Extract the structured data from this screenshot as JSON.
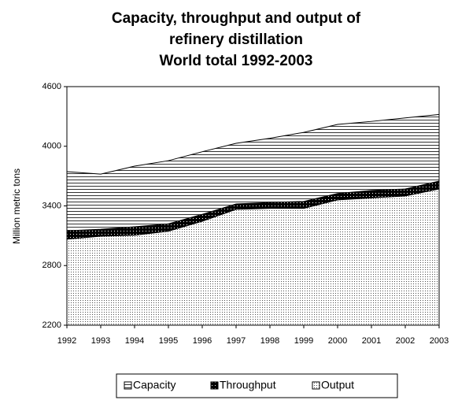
{
  "chart_data": {
    "type": "area",
    "title": [
      "Capacity, throughput and output of",
      "refinery distillation",
      "World total 1992-2003"
    ],
    "y_label": "Million metric tons",
    "categories": [
      "1992",
      "1993",
      "1994",
      "1995",
      "1996",
      "1997",
      "1998",
      "1999",
      "2000",
      "2001",
      "2002",
      "2003"
    ],
    "series": [
      {
        "name": "Capacity",
        "color": "#000000",
        "pattern": "horizontal-lines",
        "values": [
          3745,
          3720,
          3800,
          3855,
          3945,
          4030,
          4080,
          4140,
          4220,
          4250,
          4285,
          4320
        ]
      },
      {
        "name": "Throughput",
        "color": "#000000",
        "pattern": "dark-dots",
        "values": [
          3150,
          3165,
          3190,
          3220,
          3315,
          3420,
          3435,
          3445,
          3525,
          3555,
          3570,
          3650
        ]
      },
      {
        "name": "Output",
        "color": "#000000",
        "pattern": "light-dots",
        "values": [
          3065,
          3095,
          3105,
          3145,
          3245,
          3365,
          3375,
          3375,
          3460,
          3480,
          3500,
          3570
        ]
      }
    ],
    "ylim": [
      2200,
      4600
    ],
    "yticks": [
      2200,
      2800,
      3400,
      4000,
      4600
    ],
    "grid": false,
    "legend": "bottom"
  }
}
